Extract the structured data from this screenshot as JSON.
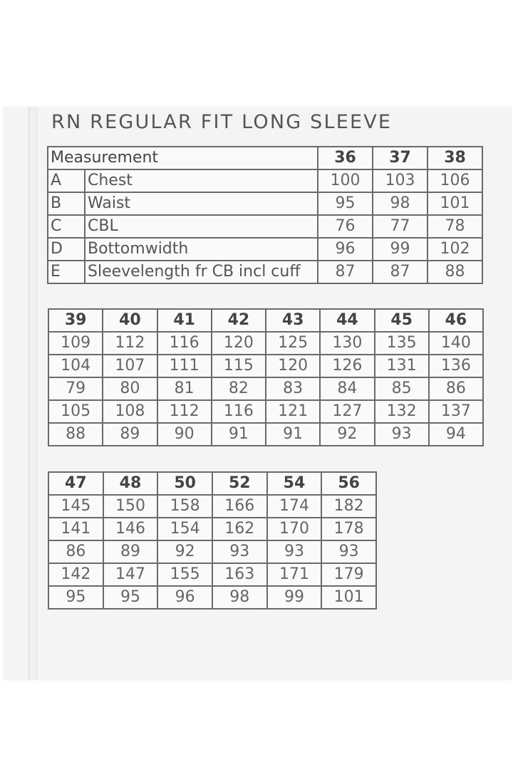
{
  "title": "RN REGULAR FIT LONG SLEEVE",
  "table1": {
    "header_label": "Measurement",
    "sizes": [
      "36",
      "37",
      "38"
    ],
    "rows": [
      {
        "letter": "A",
        "label": "Chest",
        "values": [
          "100",
          "103",
          "106"
        ]
      },
      {
        "letter": "B",
        "label": "Waist",
        "values": [
          "95",
          "98",
          "101"
        ]
      },
      {
        "letter": "C",
        "label": "CBL",
        "values": [
          "76",
          "77",
          "78"
        ]
      },
      {
        "letter": "D",
        "label": "Bottomwidth",
        "values": [
          "96",
          "99",
          "102"
        ]
      },
      {
        "letter": "E",
        "label": "Sleevelength fr CB incl cuff",
        "values": [
          "87",
          "87",
          "88"
        ]
      }
    ]
  },
  "table2": {
    "sizes": [
      "39",
      "40",
      "41",
      "42",
      "43",
      "44",
      "45",
      "46"
    ],
    "rows": [
      [
        "109",
        "112",
        "116",
        "120",
        "125",
        "130",
        "135",
        "140"
      ],
      [
        "104",
        "107",
        "111",
        "115",
        "120",
        "126",
        "131",
        "136"
      ],
      [
        "79",
        "80",
        "81",
        "82",
        "83",
        "84",
        "85",
        "86"
      ],
      [
        "105",
        "108",
        "112",
        "116",
        "121",
        "127",
        "132",
        "137"
      ],
      [
        "88",
        "89",
        "90",
        "91",
        "91",
        "92",
        "93",
        "94"
      ]
    ]
  },
  "table3": {
    "sizes": [
      "47",
      "48",
      "50",
      "52",
      "54",
      "56"
    ],
    "rows": [
      [
        "145",
        "150",
        "158",
        "166",
        "174",
        "182"
      ],
      [
        "141",
        "146",
        "154",
        "162",
        "170",
        "178"
      ],
      [
        "86",
        "89",
        "92",
        "93",
        "93",
        "93"
      ],
      [
        "142",
        "147",
        "155",
        "163",
        "171",
        "179"
      ],
      [
        "95",
        "95",
        "96",
        "98",
        "99",
        "101"
      ]
    ]
  }
}
